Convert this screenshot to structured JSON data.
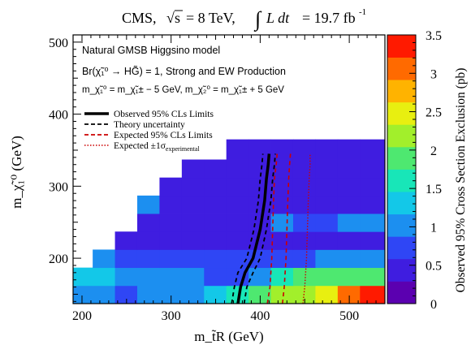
{
  "chart_data": {
    "type": "heatmap",
    "title_html": "CMS, √s = 8 TeV, ∫L dt = 19.7 fb⁻¹",
    "title_parts": {
      "experiment": "CMS,",
      "sqrt": "s",
      "energy": "= 8 TeV,",
      "lumi_label": "L dt",
      "lumi_value": "= 19.7 fb"
    },
    "model_lines": {
      "line1": "Natural GMSB Higgsino model",
      "line2": "Br(χ̃₁⁰ → HG̃) = 1, Strong and EW Production",
      "line3": "m_χ̃₁⁰ = m_χ̃₁± − 5 GeV, m_χ̃₂⁰ = m_χ̃₁± + 5 GeV"
    },
    "xlabel": "m_t̃R (GeV)",
    "ylabel": "m_χ̃₁⁰ (GeV)",
    "zlabel": "Observed 95% Cross Section Exclusion (pb)",
    "xlim": [
      190,
      540
    ],
    "ylim": [
      137,
      510
    ],
    "zlim": [
      0,
      3.5
    ],
    "xticks": [
      "200",
      "300",
      "400",
      "500"
    ],
    "yticks": [
      "200",
      "300",
      "400",
      "500"
    ],
    "zticks": [
      "0",
      "0.5",
      "1",
      "1.5",
      "2",
      "2.5",
      "3",
      "3.5"
    ],
    "xbins": [
      190,
      212,
      237,
      262,
      287,
      312,
      337,
      362,
      387,
      412,
      437,
      462,
      487,
      512,
      540
    ],
    "ybins": [
      137,
      162,
      187,
      212,
      237,
      262,
      287,
      312,
      337,
      365
    ],
    "z_grid": [
      [
        0.95,
        0.9,
        0.85,
        0.9,
        0.95,
        1.1,
        1.2,
        1.6,
        1.9,
        2.1,
        2.3,
        2.4,
        3.1,
        3.4
      ],
      [
        1.4,
        1.2,
        1.1,
        1.0,
        0.95,
        0.9,
        0.85,
        0.8,
        0.9,
        1.6,
        1.8,
        1.8,
        2.0,
        1.9
      ],
      [
        null,
        1.0,
        0.7,
        0.8,
        0.85,
        0.75,
        0.7,
        0.65,
        0.7,
        0.75,
        0.85,
        0.9,
        0.95,
        1.0
      ],
      [
        null,
        null,
        0.5,
        0.4,
        0.55,
        0.5,
        0.3,
        0.45,
        0.4,
        0.35,
        0.4,
        0.45,
        0.4,
        0.5
      ],
      [
        null,
        null,
        null,
        0.5,
        0.4,
        0.5,
        0.45,
        0.4,
        0.45,
        1.0,
        0.7,
        0.75,
        1.0,
        0.95
      ],
      [
        null,
        null,
        null,
        1.1,
        0.45,
        0.4,
        0.35,
        0.45,
        0.4,
        0.4,
        0.3,
        0.4,
        0.45,
        0.5
      ],
      [
        null,
        null,
        null,
        null,
        0.4,
        0.35,
        0.4,
        0.35,
        0.4,
        0.4,
        0.4,
        0.3,
        0.4,
        0.35
      ],
      [
        null,
        null,
        null,
        null,
        null,
        0.3,
        0.3,
        0.35,
        0.3,
        0.35,
        0.3,
        0.35,
        0.3,
        0.35
      ],
      [
        null,
        null,
        null,
        null,
        null,
        null,
        null,
        0.3,
        0.3,
        0.35,
        0.3,
        0.3,
        0.3,
        0.3
      ]
    ],
    "series": [
      {
        "name": "Observed 95% CLs Limits",
        "x": [
          375,
          378,
          383,
          392,
          400,
          405,
          407,
          409,
          410
        ],
        "y": [
          137,
          160,
          180,
          200,
          240,
          280,
          310,
          330,
          345
        ]
      },
      {
        "name": "Theory uncertainty",
        "x": [
          368,
          371,
          375,
          385,
          393,
          398,
          400,
          402,
          403
        ],
        "y": [
          137,
          160,
          180,
          200,
          240,
          280,
          310,
          330,
          345
        ]
      },
      {
        "name": "Theory uncertainty",
        "x": [
          382,
          385,
          392,
          400,
          407,
          412,
          414,
          416,
          417
        ],
        "y": [
          137,
          160,
          180,
          200,
          240,
          280,
          310,
          330,
          345
        ]
      },
      {
        "name": "Expected 95% CLs Limits",
        "x": [
          408,
          411,
          412,
          413,
          414,
          415,
          416,
          418,
          419
        ],
        "y": [
          137,
          160,
          180,
          200,
          240,
          280,
          310,
          330,
          345
        ]
      },
      {
        "name": "Expected 95% CLs Limits",
        "x": [
          425,
          427,
          428,
          429,
          430,
          431,
          432,
          433,
          434
        ],
        "y": [
          137,
          160,
          180,
          200,
          240,
          280,
          310,
          330,
          345
        ]
      },
      {
        "name": "Expected ±1σ",
        "x": [
          448,
          450,
          451,
          452,
          453,
          454,
          455,
          456,
          456
        ],
        "y": [
          137,
          160,
          180,
          200,
          240,
          280,
          310,
          330,
          345
        ]
      }
    ],
    "legend": [
      {
        "label": "Observed 95% CLs Limits",
        "style": "thick-solid",
        "color": "#000000"
      },
      {
        "label": "Theory uncertainty",
        "style": "dashed",
        "color": "#000000"
      },
      {
        "label": "Expected 95% CLs Limits",
        "style": "dashed",
        "color": "#cc0000"
      },
      {
        "label_main": "Expected ±1σ",
        "label_sub": "experimental",
        "style": "dotted",
        "color": "#cc0000"
      }
    ],
    "legend_position": "top-left",
    "colormap": [
      "#5b00b0",
      "#3f1de0",
      "#2f46f5",
      "#1c8ff0",
      "#13c8e8",
      "#18e6b8",
      "#4ee870",
      "#a2ef2b",
      "#e8ef10",
      "#ffb300",
      "#ff6a00",
      "#ff1a00"
    ]
  }
}
